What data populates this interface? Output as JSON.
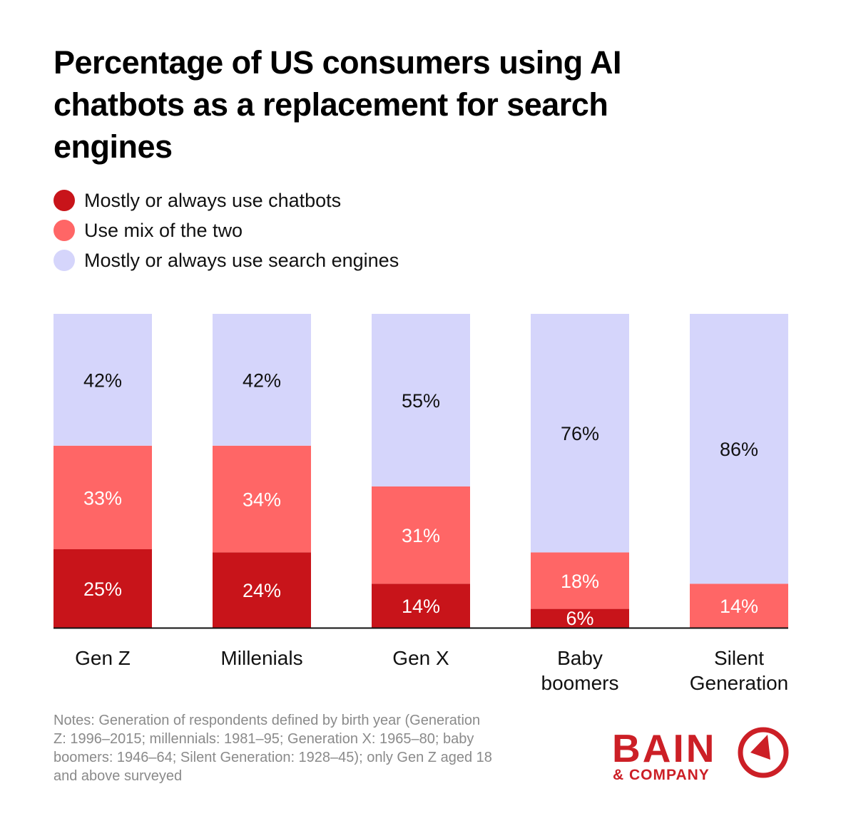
{
  "chart_data": {
    "type": "bar",
    "stacked": true,
    "title": "Percentage of US consumers using AI chatbots as a replacement for search engines",
    "categories": [
      "Gen Z",
      "Millenials",
      "Gen X",
      "Baby boomers",
      "Silent Generation"
    ],
    "series": [
      {
        "name": "Mostly or always use chatbots",
        "color": "#c8141a",
        "values": [
          25,
          24,
          14,
          6,
          0
        ]
      },
      {
        "name": "Use mix of the two",
        "color": "#ff6666",
        "values": [
          33,
          34,
          31,
          18,
          14
        ]
      },
      {
        "name": "Mostly or always use search engines",
        "color": "#d5d5fb",
        "values": [
          42,
          42,
          55,
          76,
          86
        ]
      }
    ],
    "ylim": [
      0,
      100
    ],
    "unit": "%",
    "legend_position": "top-left",
    "grid": false
  },
  "notes": "Notes: Generation of respondents defined by birth year (Generation Z: 1996–2015; millennials: 1981–95; Generation X: 1965–80; baby boomers: 1946–64; Silent Generation: 1928–45); only Gen Z aged 18 and above surveyed",
  "logo": {
    "line1": "BAIN",
    "line2": "& COMPANY",
    "color": "#cc1f26"
  }
}
